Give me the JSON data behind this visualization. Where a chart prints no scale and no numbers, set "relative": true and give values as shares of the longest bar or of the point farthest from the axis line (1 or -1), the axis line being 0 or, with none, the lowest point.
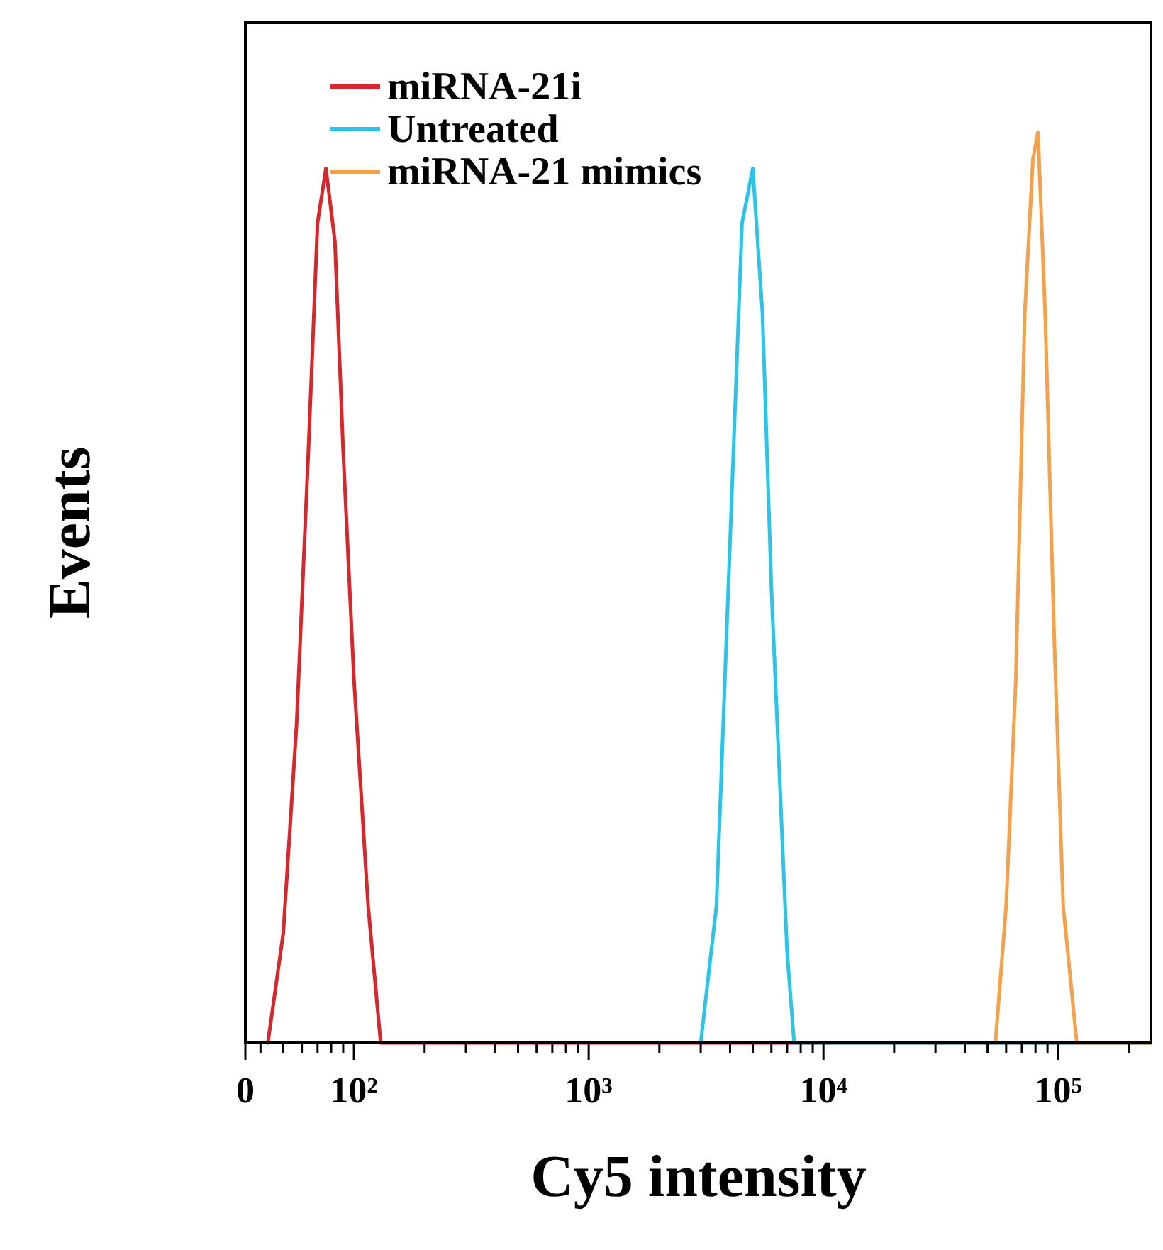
{
  "chart_data": {
    "type": "line",
    "relative": true,
    "log": "x",
    "xlabel": "Cy5 intensity",
    "ylabel": "Events",
    "legend": "top left",
    "grid": false,
    "tick_labels": "x",
    "marker": "none",
    "line_style": "solid",
    "xlim": [
      0,
      250000
    ],
    "xticks": [
      {
        "value": 0,
        "label": "0"
      },
      {
        "value": 40,
        "label": null
      },
      {
        "value": 50,
        "label": null
      },
      {
        "value": 60,
        "label": null
      },
      {
        "value": 70,
        "label": null
      },
      {
        "value": 80,
        "label": null
      },
      {
        "value": 90,
        "label": null
      },
      {
        "value": 100,
        "label": "10²"
      },
      {
        "value": 200,
        "label": null
      },
      {
        "value": 300,
        "label": null
      },
      {
        "value": 400,
        "label": null
      },
      {
        "value": 500,
        "label": null
      },
      {
        "value": 600,
        "label": null
      },
      {
        "value": 700,
        "label": null
      },
      {
        "value": 800,
        "label": null
      },
      {
        "value": 900,
        "label": null
      },
      {
        "value": 1000,
        "label": "10³"
      },
      {
        "value": 2000,
        "label": null
      },
      {
        "value": 3000,
        "label": null
      },
      {
        "value": 4000,
        "label": null
      },
      {
        "value": 5000,
        "label": null
      },
      {
        "value": 6000,
        "label": null
      },
      {
        "value": 7000,
        "label": null
      },
      {
        "value": 8000,
        "label": null
      },
      {
        "value": 9000,
        "label": null
      },
      {
        "value": 10000,
        "label": "10⁴"
      },
      {
        "value": 20000,
        "label": null
      },
      {
        "value": 30000,
        "label": null
      },
      {
        "value": 40000,
        "label": null
      },
      {
        "value": 50000,
        "label": null
      },
      {
        "value": 60000,
        "label": null
      },
      {
        "value": 70000,
        "label": null
      },
      {
        "value": 80000,
        "label": null
      },
      {
        "value": 90000,
        "label": null
      },
      {
        "value": 100000,
        "label": "10⁵"
      },
      {
        "value": 200000,
        "label": null
      }
    ],
    "series": [
      {
        "name": "miRNA-21i",
        "color": "#d9262b",
        "x": [
          43,
          50,
          57,
          64,
          70,
          76,
          83,
          90,
          100,
          115,
          130,
          250000
        ],
        "values": [
          0,
          0.12,
          0.35,
          0.65,
          0.9,
          0.96,
          0.88,
          0.65,
          0.4,
          0.15,
          0,
          0
        ]
      },
      {
        "name": "Untreated",
        "color": "#29c4ea",
        "x": [
          3000,
          3500,
          4000,
          4500,
          5000,
          5500,
          6000,
          7000,
          7500,
          250000
        ],
        "values": [
          0,
          0.15,
          0.55,
          0.9,
          0.96,
          0.8,
          0.5,
          0.1,
          0,
          0
        ]
      },
      {
        "name": "miRNA-21 mimics",
        "color": "#f5a04a",
        "x": [
          54000,
          60000,
          66000,
          72000,
          78000,
          82000,
          88000,
          96000,
          105000,
          120000,
          250000
        ],
        "values": [
          0,
          0.15,
          0.4,
          0.8,
          0.97,
          1,
          0.8,
          0.45,
          0.15,
          0,
          0
        ]
      }
    ]
  }
}
